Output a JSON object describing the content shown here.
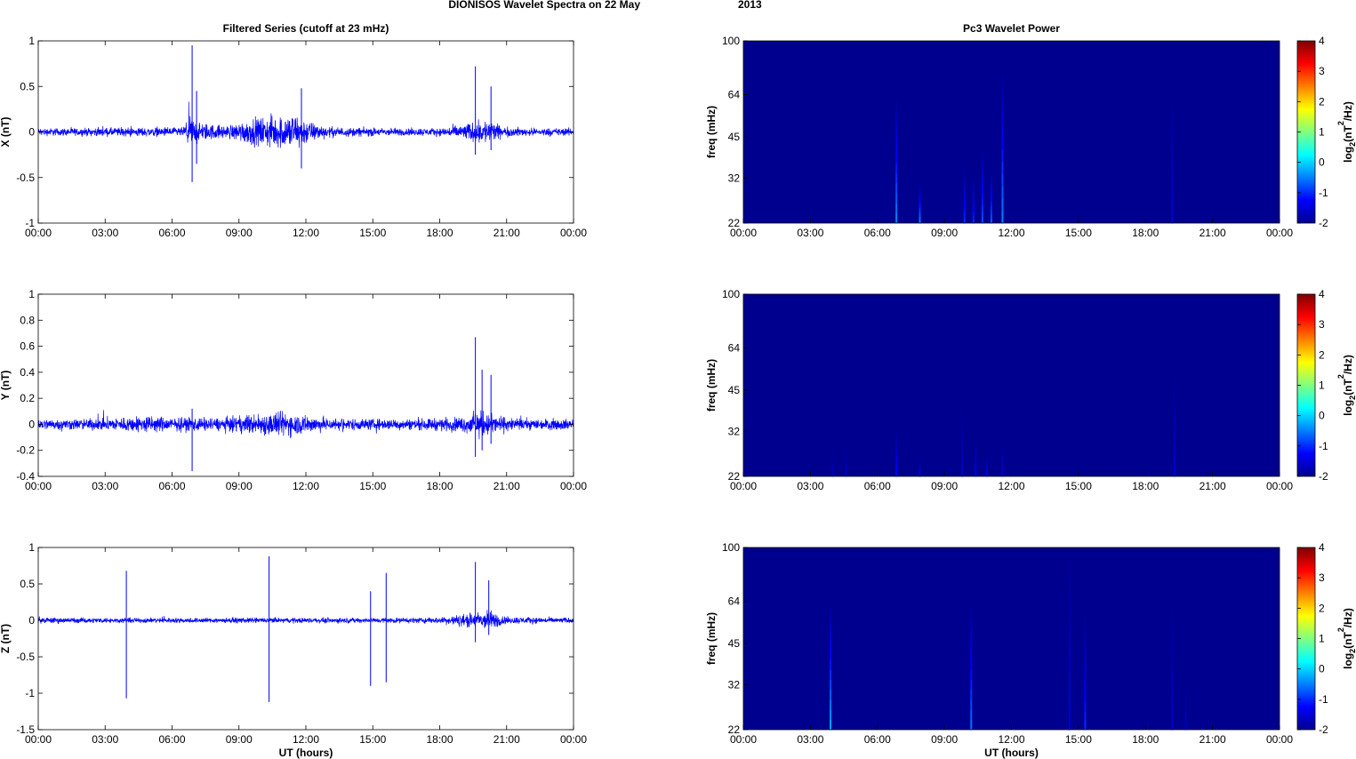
{
  "figure": {
    "title_left": "DIONISOS Wavelet Spectra on 22 May",
    "title_right": "2013"
  },
  "colors": {
    "signal": "#0000ff",
    "spectrum_background": "#00008f",
    "colormap": [
      "#00008f",
      "#0000ff",
      "#0080ff",
      "#00ffff",
      "#80ff80",
      "#ffff00",
      "#ff8000",
      "#ff0000",
      "#800000"
    ]
  },
  "chart_data": [
    {
      "type": "line",
      "panel": "x-series",
      "title": "Filtered Series (cutoff at 23 mHz)",
      "xlabel": "",
      "ylabel": "X (nT)",
      "xlim": [
        0,
        24
      ],
      "ylim": [
        -1,
        1
      ],
      "xticklabels": [
        "00:00",
        "03:00",
        "06:00",
        "09:00",
        "12:00",
        "15:00",
        "18:00",
        "21:00",
        "00:00"
      ],
      "yticks": [
        -1,
        -0.5,
        0,
        0.5,
        1
      ],
      "yticklabels": [
        "-1",
        "-0.5",
        "0",
        "0.5",
        "1"
      ],
      "envelope": {
        "x": [
          0,
          2,
          4,
          6.5,
          6.8,
          7.2,
          7.8,
          8.5,
          9.5,
          10.5,
          11.5,
          12.3,
          13,
          14,
          16,
          18,
          19.5,
          20.2,
          20.8,
          22,
          24
        ],
        "amplitude": [
          0.06,
          0.06,
          0.07,
          0.07,
          0.25,
          0.15,
          0.12,
          0.1,
          0.2,
          0.25,
          0.28,
          0.15,
          0.08,
          0.07,
          0.06,
          0.06,
          0.15,
          0.2,
          0.08,
          0.06,
          0.06
        ]
      },
      "spikes": [
        {
          "x": 6.9,
          "max": 0.95,
          "min": -0.55
        },
        {
          "x": 7.1,
          "max": 0.45,
          "min": -0.35
        },
        {
          "x": 11.8,
          "max": 0.48,
          "min": -0.4
        },
        {
          "x": 19.6,
          "max": 0.72,
          "min": -0.25
        },
        {
          "x": 20.3,
          "max": 0.5,
          "min": -0.2
        }
      ]
    },
    {
      "type": "heatmap",
      "panel": "x-spectrum",
      "title": "Pc3 Wavelet Power",
      "ylabel": "freq (mHz)",
      "xlim": [
        0,
        24
      ],
      "ylim": [
        22,
        100
      ],
      "yscale": "log",
      "xticklabels": [
        "00:00",
        "03:00",
        "06:00",
        "09:00",
        "12:00",
        "15:00",
        "18:00",
        "21:00",
        "00:00"
      ],
      "yticks": [
        22,
        32,
        45,
        64,
        100
      ],
      "yticklabels": [
        "22",
        "32",
        "45",
        "64",
        "100"
      ],
      "clim": [
        -2,
        4
      ],
      "colorbar_ticklabels": [
        "-2",
        "-1",
        "0",
        "1",
        "2",
        "3",
        "4"
      ],
      "colorbar_label_prefix": "log",
      "colorbar_label_sub": "2",
      "colorbar_label_mid": "(nT",
      "colorbar_label_sup": "2",
      "colorbar_label_suffix": "/Hz)",
      "bursts": [
        {
          "t": 6.85,
          "fmax": 60,
          "level": -0.5
        },
        {
          "t": 7.9,
          "fmax": 30,
          "level": -0.5
        },
        {
          "t": 9.9,
          "fmax": 35,
          "level": -1
        },
        {
          "t": 10.3,
          "fmax": 32,
          "level": -1
        },
        {
          "t": 10.7,
          "fmax": 40,
          "level": -0.8
        },
        {
          "t": 11.1,
          "fmax": 34,
          "level": -0.7
        },
        {
          "t": 11.6,
          "fmax": 75,
          "level": -0.5
        },
        {
          "t": 19.2,
          "fmax": 60,
          "level": -1.5
        }
      ]
    },
    {
      "type": "line",
      "panel": "y-series",
      "title": "",
      "xlabel": "",
      "ylabel": "Y (nT)",
      "xlim": [
        0,
        24
      ],
      "ylim": [
        -0.4,
        1
      ],
      "xticklabels": [
        "00:00",
        "03:00",
        "06:00",
        "09:00",
        "12:00",
        "15:00",
        "18:00",
        "21:00",
        "00:00"
      ],
      "yticks": [
        -0.4,
        -0.2,
        0,
        0.2,
        0.4,
        0.6,
        0.8,
        1
      ],
      "yticklabels": [
        "-0.4",
        "-0.2",
        "0",
        "0.2",
        "0.4",
        "0.6",
        "0.8",
        "1"
      ],
      "envelope": {
        "x": [
          0,
          2,
          4,
          5,
          6,
          7,
          8,
          9,
          10,
          11,
          12,
          13,
          15,
          17,
          19,
          19.8,
          20.5,
          21.5,
          24
        ],
        "amplitude": [
          0.06,
          0.06,
          0.08,
          0.1,
          0.07,
          0.08,
          0.07,
          0.09,
          0.12,
          0.14,
          0.1,
          0.07,
          0.06,
          0.06,
          0.08,
          0.15,
          0.1,
          0.06,
          0.06
        ]
      },
      "spikes": [
        {
          "x": 6.9,
          "max": 0.12,
          "min": -0.36
        },
        {
          "x": 19.6,
          "max": 0.67,
          "min": -0.25
        },
        {
          "x": 19.9,
          "max": 0.42,
          "min": -0.2
        },
        {
          "x": 20.3,
          "max": 0.38,
          "min": -0.15
        }
      ]
    },
    {
      "type": "heatmap",
      "panel": "y-spectrum",
      "title": "",
      "ylabel": "freq (mHz)",
      "xlim": [
        0,
        24
      ],
      "ylim": [
        22,
        100
      ],
      "yscale": "log",
      "xticklabels": [
        "00:00",
        "03:00",
        "06:00",
        "09:00",
        "12:00",
        "15:00",
        "18:00",
        "21:00",
        "00:00"
      ],
      "yticks": [
        22,
        32,
        45,
        64,
        100
      ],
      "yticklabels": [
        "22",
        "32",
        "45",
        "64",
        "100"
      ],
      "clim": [
        -2,
        4
      ],
      "colorbar_ticklabels": [
        "-2",
        "-1",
        "0",
        "1",
        "2",
        "3",
        "4"
      ],
      "colorbar_label_prefix": "log",
      "colorbar_label_sub": "2",
      "colorbar_label_mid": "(nT",
      "colorbar_label_sup": "2",
      "colorbar_label_suffix": "/Hz)",
      "bursts": [
        {
          "t": 4.0,
          "fmax": 27,
          "level": -1.7
        },
        {
          "t": 4.6,
          "fmax": 28,
          "level": -1.7
        },
        {
          "t": 6.85,
          "fmax": 32,
          "level": -1.2
        },
        {
          "t": 7.9,
          "fmax": 26,
          "level": -1.5
        },
        {
          "t": 9.8,
          "fmax": 38,
          "level": -1.6
        },
        {
          "t": 10.4,
          "fmax": 30,
          "level": -1.4
        },
        {
          "t": 10.9,
          "fmax": 26,
          "level": -1.4
        },
        {
          "t": 11.6,
          "fmax": 28,
          "level": -1.5
        },
        {
          "t": 19.3,
          "fmax": 50,
          "level": -1.6
        }
      ]
    },
    {
      "type": "line",
      "panel": "z-series",
      "title": "",
      "xlabel": "UT (hours)",
      "ylabel": "Z (nT)",
      "xlim": [
        0,
        24
      ],
      "ylim": [
        -1.5,
        1
      ],
      "xticklabels": [
        "00:00",
        "03:00",
        "06:00",
        "09:00",
        "12:00",
        "15:00",
        "18:00",
        "21:00",
        "00:00"
      ],
      "yticks": [
        -1.5,
        -1,
        -0.5,
        0,
        0.5,
        1
      ],
      "yticklabels": [
        "-1.5",
        "-1",
        "-0.5",
        "0",
        "0.5",
        "1"
      ],
      "envelope": {
        "x": [
          0,
          2,
          4,
          6,
          8,
          10,
          12,
          14,
          16,
          18,
          19.5,
          20.2,
          21,
          24
        ],
        "amplitude": [
          0.06,
          0.05,
          0.05,
          0.05,
          0.05,
          0.05,
          0.05,
          0.05,
          0.05,
          0.06,
          0.15,
          0.2,
          0.07,
          0.05
        ]
      },
      "spikes": [
        {
          "x": 3.95,
          "max": 0.68,
          "min": -1.07
        },
        {
          "x": 10.35,
          "max": 0.88,
          "min": -1.12
        },
        {
          "x": 14.9,
          "max": 0.4,
          "min": -0.9
        },
        {
          "x": 15.6,
          "max": 0.65,
          "min": -0.85
        },
        {
          "x": 19.6,
          "max": 0.8,
          "min": -0.3
        },
        {
          "x": 20.2,
          "max": 0.55,
          "min": -0.2
        }
      ]
    },
    {
      "type": "heatmap",
      "panel": "z-spectrum",
      "title": "",
      "xlabel": "UT (hours)",
      "ylabel": "freq (mHz)",
      "xlim": [
        0,
        24
      ],
      "ylim": [
        22,
        100
      ],
      "yscale": "log",
      "xticklabels": [
        "00:00",
        "03:00",
        "06:00",
        "09:00",
        "12:00",
        "15:00",
        "18:00",
        "21:00",
        "00:00"
      ],
      "yticks": [
        22,
        32,
        45,
        64,
        100
      ],
      "yticklabels": [
        "22",
        "32",
        "45",
        "64",
        "100"
      ],
      "clim": [
        -2,
        4
      ],
      "colorbar_ticklabels": [
        "-2",
        "-1",
        "0",
        "1",
        "2",
        "3",
        "4"
      ],
      "colorbar_label_prefix": "log",
      "colorbar_label_sub": "2",
      "colorbar_label_mid": "(nT",
      "colorbar_label_sup": "2",
      "colorbar_label_suffix": "/Hz)",
      "bursts": [
        {
          "t": 3.9,
          "fmax": 60,
          "level": -0.3
        },
        {
          "t": 10.2,
          "fmax": 60,
          "level": -0.6
        },
        {
          "t": 14.6,
          "fmax": 90,
          "level": -1.5
        },
        {
          "t": 15.3,
          "fmax": 55,
          "level": -1.0
        },
        {
          "t": 19.2,
          "fmax": 60,
          "level": -1.6
        },
        {
          "t": 19.8,
          "fmax": 32,
          "level": -1.7
        }
      ]
    }
  ]
}
